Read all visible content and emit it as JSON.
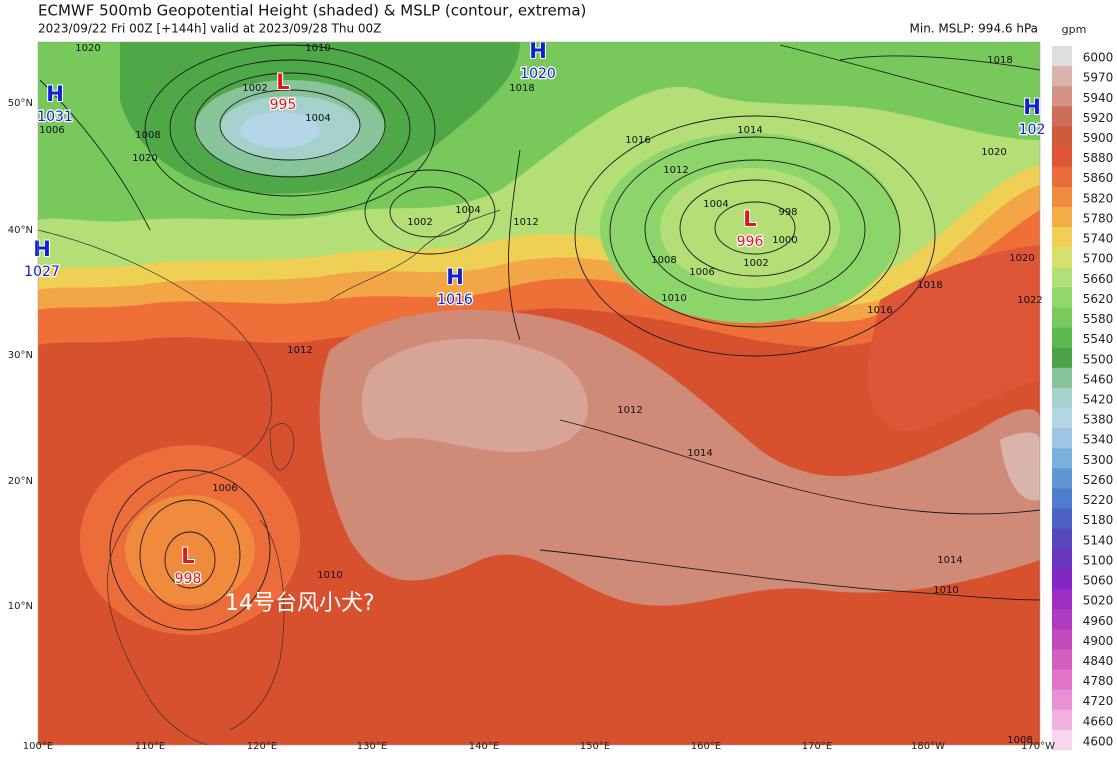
{
  "header": {
    "title": "ECMWF 500mb Geopotential Height (shaded) & MSLP (contour, extrema)",
    "subtitle": "2023/09/22 Fri 00Z [+144h] valid at 2023/09/28 Thu 00Z",
    "min_mslp": "Min. MSLP: 994.6 hPa"
  },
  "colorbar": {
    "unit": "gpm",
    "levels": [
      "6000",
      "5970",
      "5940",
      "5920",
      "5900",
      "5880",
      "5860",
      "5820",
      "5780",
      "5740",
      "5700",
      "5660",
      "5620",
      "5580",
      "5540",
      "5500",
      "5460",
      "5420",
      "5380",
      "5340",
      "5300",
      "5260",
      "5220",
      "5180",
      "5140",
      "5100",
      "5060",
      "5020",
      "4960",
      "4900",
      "4840",
      "4780",
      "4720",
      "4660",
      "4600"
    ],
    "colors": [
      "#dedede",
      "#d8b4ab",
      "#d39282",
      "#cd6e58",
      "#d05a3c",
      "#de5538",
      "#ea6c3a",
      "#f08a3c",
      "#f4ad46",
      "#f0cf54",
      "#d6e06c",
      "#b2df78",
      "#92d86c",
      "#78ca5c",
      "#5eb850",
      "#4aa446",
      "#88c49a",
      "#a6d0cc",
      "#b4d6e6",
      "#9cc6e4",
      "#7cb0dc",
      "#5e96d4",
      "#4d7dcc",
      "#4b62c4",
      "#5548bc",
      "#6a36be",
      "#8226c4",
      "#9c2ec4",
      "#b03ac0",
      "#c24cbc",
      "#d45ec0",
      "#e074c8",
      "#ea90d4",
      "#f2b0e0",
      "#f8d6ee"
    ]
  },
  "lon_labels": [
    "100°E",
    "110°E",
    "120°E",
    "130°E",
    "140°E",
    "150°E",
    "160°E",
    "170°E",
    "180°W",
    "170°W"
  ],
  "lat_labels": [
    "50°N",
    "40°N",
    "30°N",
    "20°N",
    "10°N"
  ],
  "centers": [
    {
      "type": "H",
      "value": "1031"
    },
    {
      "type": "L",
      "value": "995"
    },
    {
      "type": "H",
      "value": "1020"
    },
    {
      "type": "H",
      "value": "1027"
    },
    {
      "type": "H",
      "value": "1016"
    },
    {
      "type": "L",
      "value": "996"
    },
    {
      "type": "H",
      "value": "102"
    },
    {
      "type": "L",
      "value": "998"
    }
  ],
  "contour_labels": [
    "1020",
    "1010",
    "1006",
    "1008",
    "1002",
    "1004",
    "1020",
    "1018",
    "1002",
    "1004",
    "1012",
    "1012",
    "1014",
    "1016",
    "1012",
    "1014",
    "1018",
    "1020",
    "1004",
    "998",
    "1000",
    "1002",
    "1008",
    "1006",
    "1010",
    "1016",
    "1018",
    "1020",
    "1022",
    "1012",
    "1014",
    "1006",
    "1010",
    "1010",
    "1008"
  ],
  "annotation": "14号台风小犬?"
}
